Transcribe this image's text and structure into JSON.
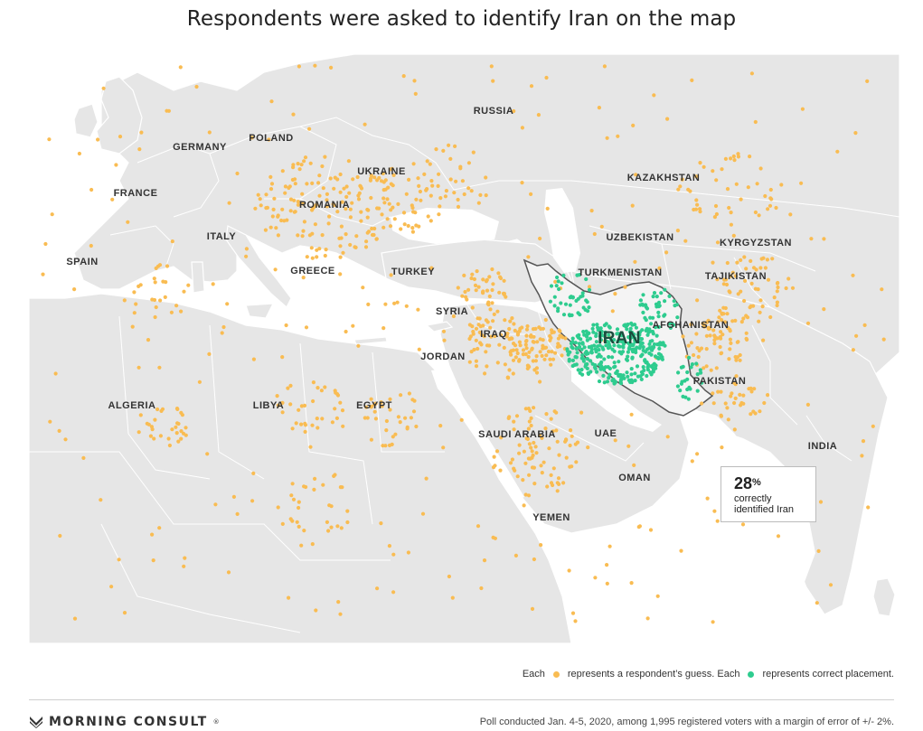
{
  "title": "Respondents were asked to identify Iran on the map",
  "map": {
    "countries": [
      {
        "name": "RUSSIA"
      },
      {
        "name": "POLAND"
      },
      {
        "name": "GERMANY"
      },
      {
        "name": "UKRAINE"
      },
      {
        "name": "KAZAKHSTAN"
      },
      {
        "name": "FRANCE"
      },
      {
        "name": "ROMANIA"
      },
      {
        "name": "ITALY"
      },
      {
        "name": "UZBEKISTAN"
      },
      {
        "name": "KYRGYZSTAN"
      },
      {
        "name": "SPAIN"
      },
      {
        "name": "GREECE"
      },
      {
        "name": "TURKEY"
      },
      {
        "name": "TURKMENISTAN"
      },
      {
        "name": "TAJIKISTAN"
      },
      {
        "name": "SYRIA"
      },
      {
        "name": "AFGHANISTAN"
      },
      {
        "name": "IRAQ"
      },
      {
        "name": "JORDAN"
      },
      {
        "name": "PAKISTAN"
      },
      {
        "name": "ALGERIA"
      },
      {
        "name": "LIBYA"
      },
      {
        "name": "EGYPT"
      },
      {
        "name": "SAUDI ARABIA"
      },
      {
        "name": "UAE"
      },
      {
        "name": "INDIA"
      },
      {
        "name": "OMAN"
      },
      {
        "name": "YEMEN"
      }
    ],
    "highlight": "IRAN",
    "colors": {
      "land": "#e6e6e6",
      "water": "#ffffff",
      "border": "#ffffff",
      "guess": "#f9bc52",
      "correct": "#2ecc8f",
      "iran_fill": "#f4f4f4",
      "iran_border": "#555555"
    }
  },
  "callout": {
    "value": "28",
    "unit": "%",
    "line1": "correctly",
    "line2": "identified Iran"
  },
  "legend": {
    "each1": "Each",
    "guess_text": "represents a respondent’s guess. Each",
    "correct_text": "represents correct placement."
  },
  "footer": {
    "brand": "MORNING CONSULT",
    "trademark": "®",
    "note": "Poll conducted Jan. 4-5, 2020, among 1,995 registered voters with a margin of error of +/- 2%."
  }
}
